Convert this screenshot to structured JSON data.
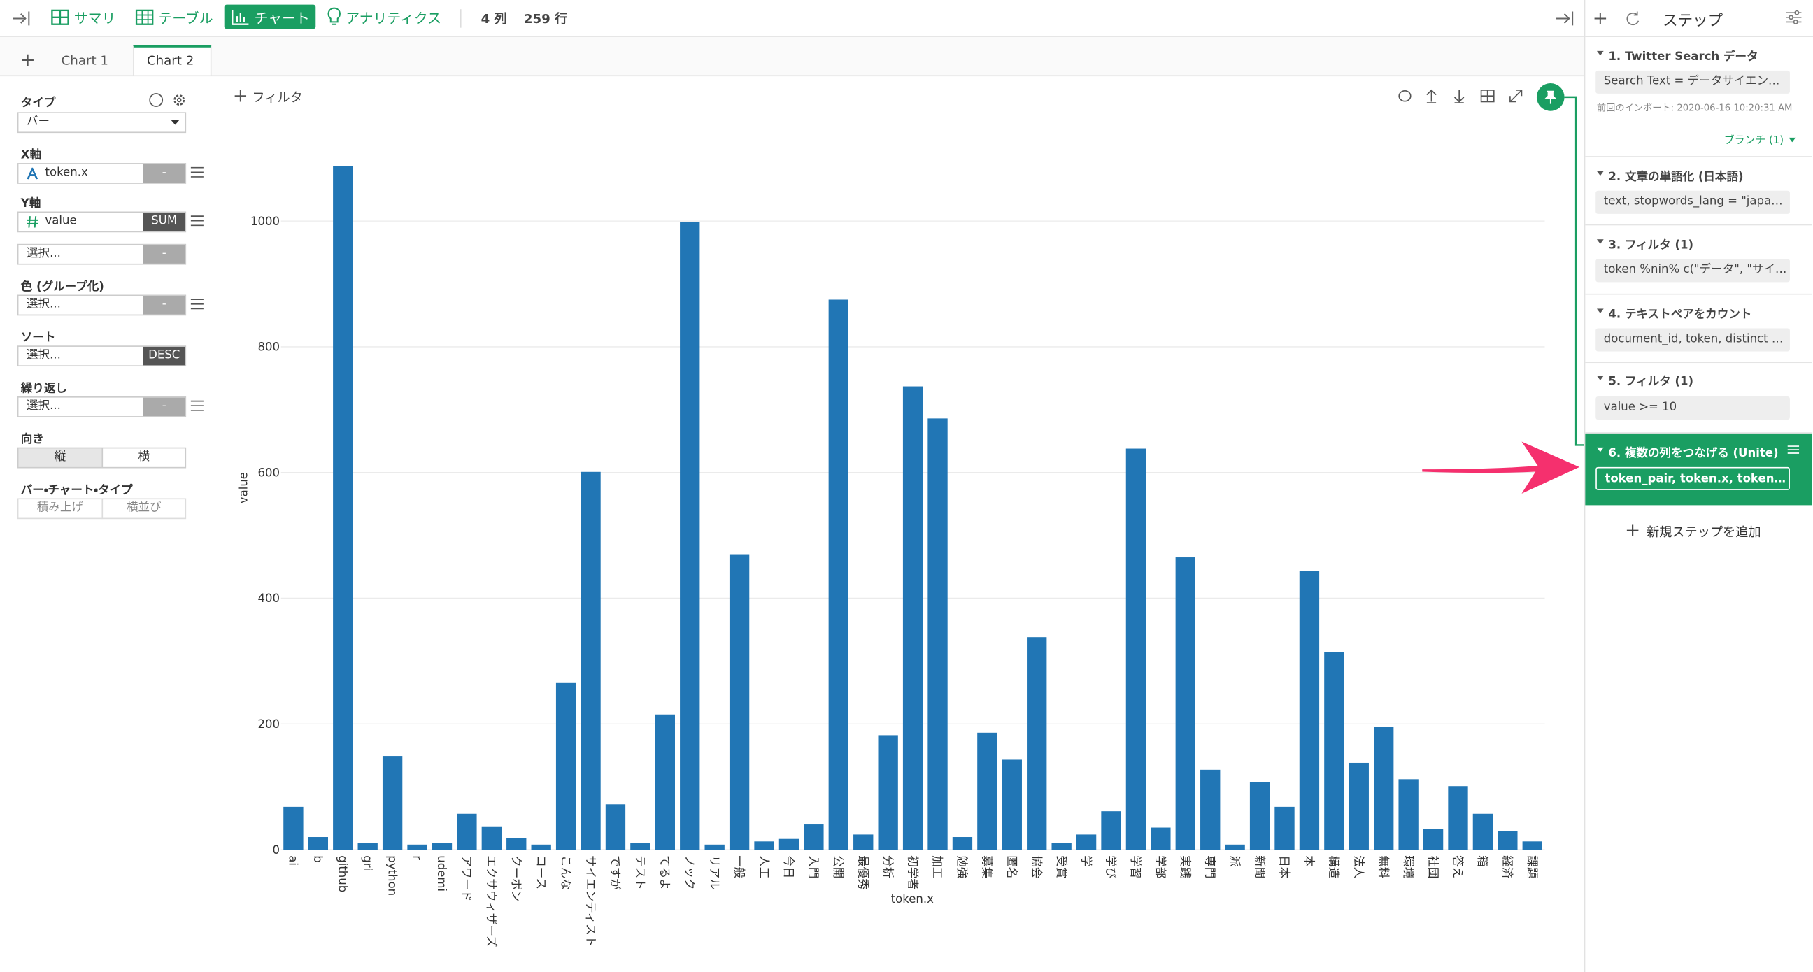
{
  "toolbar": {
    "tabs": [
      "サマリ",
      "テーブル",
      "チャート",
      "アナリティクス"
    ],
    "columns": "4 列",
    "rows": "259 行"
  },
  "chart_tabs": [
    "Chart 1",
    "Chart 2"
  ],
  "config": {
    "type_label": "タイプ",
    "type_value": "バー",
    "x_label": "X軸",
    "x_field": "token.x",
    "x_agg": "-",
    "y_label": "Y軸",
    "y_field": "value",
    "y_agg": "SUM",
    "y2_field": "選択...",
    "y2_agg": "-",
    "color_label": "色 (グループ化)",
    "color_field": "選択...",
    "color_agg": "-",
    "sort_label": "ソート",
    "sort_field": "選択...",
    "sort_order": "DESC",
    "repeat_label": "繰り返し",
    "repeat_field": "選択...",
    "repeat_agg": "-",
    "orient_label": "向き",
    "orient_options": [
      "縦",
      "横"
    ],
    "bar_type_label": "バー・チャート・タイプ",
    "bar_type_options": [
      "積み上げ",
      "横並び"
    ]
  },
  "filter": "フィルタ",
  "steps_panel": {
    "title": "ステップ",
    "steps": [
      {
        "title": "1. Twitter Search データ",
        "detail": "Search Text = データサイエンス, ...",
        "note": "前回のインポート: 2020-06-16 10:20:31 AM",
        "branch": "ブランチ (1)"
      },
      {
        "title": "2. 文章の単語化 (日本語)",
        "detail": "text, stopwords_lang = \"japanese\""
      },
      {
        "title": "3. フィルタ (1)",
        "detail": "token %nin% c(\"データ\", \"サイエ..."
      },
      {
        "title": "4. テキストペアをカウント",
        "detail": "document_id, token, distinct = TR..."
      },
      {
        "title": "5. フィルタ (1)",
        "detail": "value >= 10"
      },
      {
        "title": "6. 複数の列をつなげる (Unite)",
        "detail": "token_pair, token.x, token.y, sep ..."
      }
    ],
    "add_step": "新規ステップを追加"
  },
  "chart_data": {
    "type": "bar",
    "x_label": "token.x",
    "y_label": "value",
    "color": "#2176b5",
    "grid": true,
    "ylim": [
      0,
      1120
    ],
    "yticks": [
      0,
      200,
      400,
      600,
      800,
      1000
    ],
    "categories": [
      "ai",
      "b",
      "github",
      "gri",
      "python",
      "r",
      "udemi",
      "アワード",
      "エクサウィザーズ",
      "クーポン",
      "コース",
      "こんな",
      "サイエンティスト",
      "ですが",
      "テスト",
      "てるよ",
      "ノック",
      "リアル",
      "一般",
      "人工",
      "今日",
      "入門",
      "公開",
      "最優秀",
      "分析",
      "初学者",
      "加工",
      "勉強",
      "募集",
      "匿名",
      "協会",
      "受賞",
      "学",
      "学び",
      "学習",
      "学部",
      "実践",
      "専門",
      "派",
      "新聞",
      "日本",
      "本",
      "構造",
      "法人",
      "無料",
      "環境",
      "社団",
      "答え",
      "箱",
      "経済",
      "課題"
    ],
    "values": [
      68,
      20,
      1088,
      10,
      149,
      8,
      10,
      57,
      37,
      18,
      8,
      265,
      601,
      72,
      10,
      215,
      998,
      8,
      470,
      13,
      17,
      40,
      875,
      24,
      182,
      737,
      686,
      20,
      186,
      143,
      338,
      11,
      24,
      61,
      638,
      35,
      465,
      127,
      8,
      107,
      68,
      443,
      314,
      138,
      195,
      112,
      33,
      101,
      57,
      29,
      13
    ]
  }
}
